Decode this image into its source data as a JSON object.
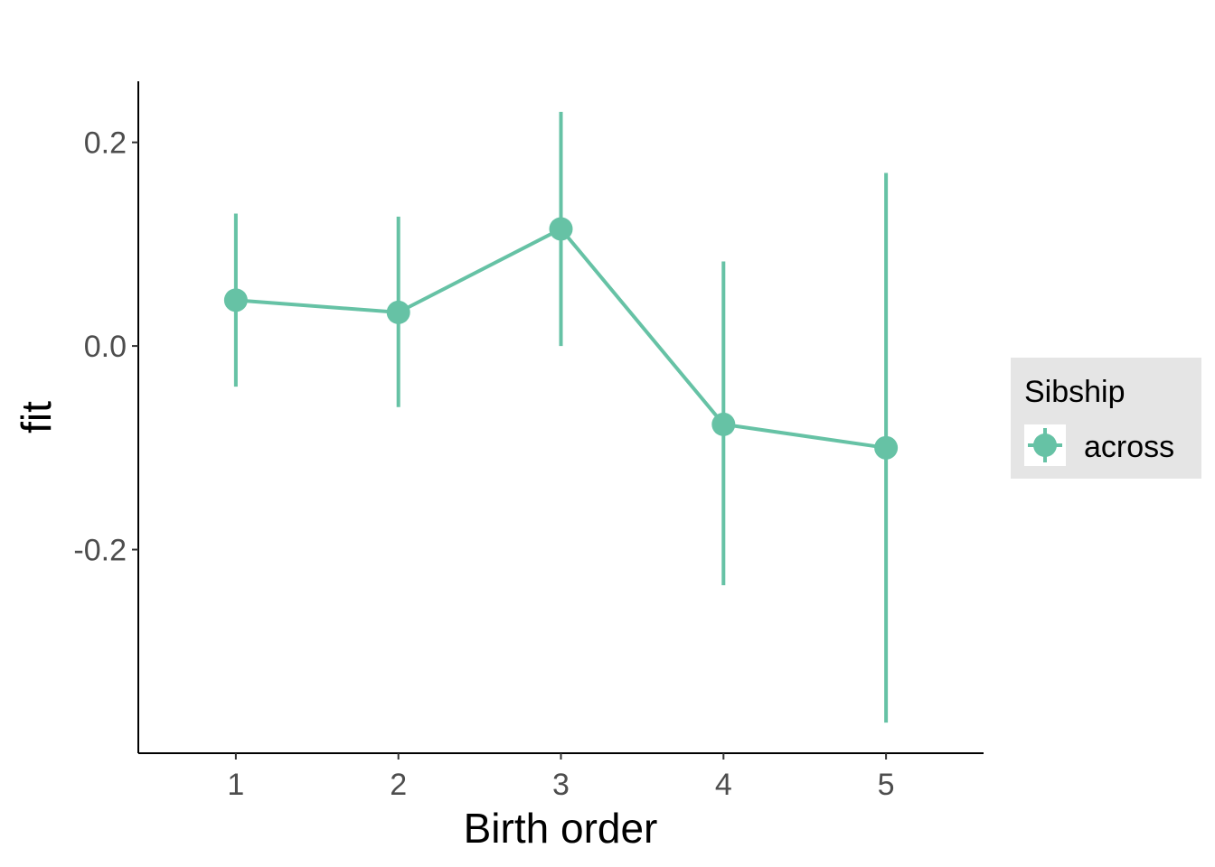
{
  "chart_data": {
    "type": "line",
    "title": "",
    "xlabel": "Birth order",
    "ylabel": "fit",
    "x": [
      1,
      2,
      3,
      4,
      5
    ],
    "xlim": [
      0.4,
      5.6
    ],
    "ylim": [
      -0.4,
      0.26
    ],
    "x_ticks": [
      "1",
      "2",
      "3",
      "4",
      "5"
    ],
    "y_ticks": [
      {
        "value": 0.2,
        "label": "0.2"
      },
      {
        "value": 0.0,
        "label": "0.0"
      },
      {
        "value": -0.2,
        "label": "-0.2"
      }
    ],
    "grid": false,
    "legend": {
      "title": "Sibship",
      "position": "right"
    },
    "series": [
      {
        "name": "across",
        "color": "#66c2a5",
        "values": [
          0.045,
          0.033,
          0.115,
          -0.077,
          -0.1
        ],
        "lower": [
          -0.04,
          -0.06,
          0.0,
          -0.235,
          -0.37
        ],
        "upper": [
          0.13,
          0.127,
          0.23,
          0.083,
          0.17
        ]
      }
    ]
  }
}
